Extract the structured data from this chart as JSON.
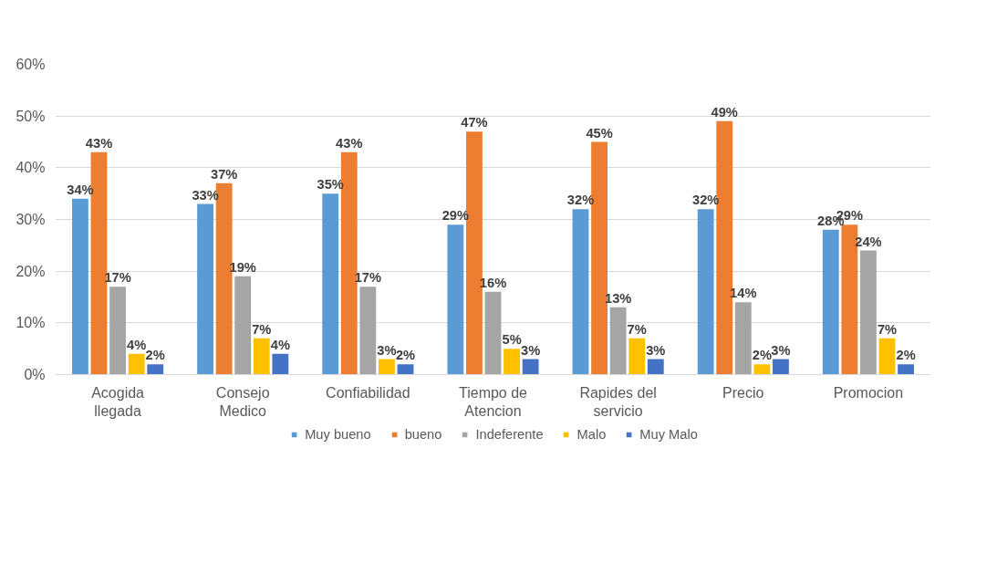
{
  "chart_data": {
    "type": "bar",
    "categories": [
      "Acogida llegada",
      "Consejo Medico",
      "Confiabilidad",
      "Tiempo de Atencion",
      "Rapides del servicio",
      "Precio",
      "Promocion"
    ],
    "series": [
      {
        "name": "Muy bueno",
        "color": "#5b9bd5",
        "values": [
          34,
          33,
          35,
          29,
          32,
          32,
          28
        ],
        "value_labels": [
          "34%",
          "33%",
          "35%",
          "29%",
          "32%",
          "32%",
          "28%"
        ]
      },
      {
        "name": "bueno",
        "color": "#ed7d31",
        "values": [
          43,
          37,
          43,
          47,
          45,
          49,
          29
        ],
        "value_labels": [
          "43%",
          "37%",
          "43%",
          "47%",
          "45%",
          "49%",
          "29%"
        ]
      },
      {
        "name": "Indeferente",
        "color": "#a5a5a5",
        "values": [
          17,
          19,
          17,
          16,
          13,
          14,
          24
        ],
        "value_labels": [
          "17%",
          "19%",
          "17%",
          "16%",
          "13%",
          "14%",
          "24%"
        ]
      },
      {
        "name": "Malo",
        "color": "#ffc000",
        "values": [
          4,
          7,
          3,
          5,
          7,
          2,
          7
        ],
        "value_labels": [
          "4%",
          "7%",
          "3%",
          "5%",
          "7%",
          "2%",
          "7%"
        ]
      },
      {
        "name": "Muy Malo",
        "color": "#4472c4",
        "values": [
          2,
          4,
          2,
          3,
          3,
          3,
          2
        ],
        "value_labels": [
          "2%",
          "4%",
          "2%",
          "3%",
          "3%",
          "3%",
          "2%"
        ]
      }
    ],
    "ylim": [
      0,
      60
    ],
    "yticks": [
      {
        "value": 0,
        "label": "0%"
      },
      {
        "value": 10,
        "label": "10%"
      },
      {
        "value": 20,
        "label": "20%"
      },
      {
        "value": 30,
        "label": "30%"
      },
      {
        "value": 40,
        "label": "40%"
      },
      {
        "value": 50,
        "label": "50%"
      },
      {
        "value": 60,
        "label": "60%"
      }
    ],
    "grid": "y",
    "legend": "bottom"
  }
}
